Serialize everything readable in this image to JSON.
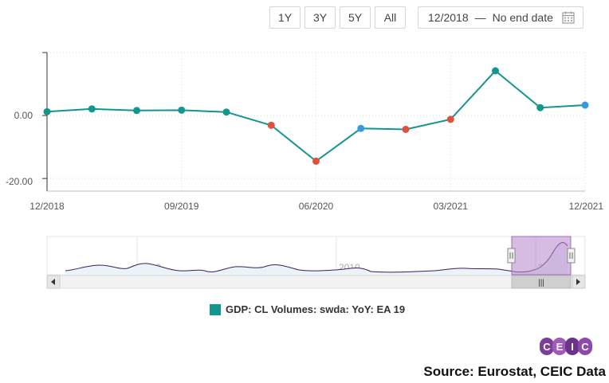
{
  "toolbar": {
    "buttons": [
      "1Y",
      "3Y",
      "5Y",
      "All"
    ],
    "date_start": "12/2018",
    "date_separator": "—",
    "date_end": "No end date",
    "calendar_icon": "calendar-icon"
  },
  "chart_data": {
    "type": "line",
    "title": "",
    "x": [
      "12/2018",
      "03/2019",
      "06/2019",
      "09/2019",
      "12/2019",
      "03/2020",
      "06/2020",
      "09/2020",
      "12/2020",
      "03/2021",
      "06/2021",
      "09/2021",
      "12/2021"
    ],
    "xticks": [
      "12/2018",
      "09/2019",
      "06/2020",
      "03/2021",
      "12/2021"
    ],
    "yticks": [
      "0.00",
      "-20.00"
    ],
    "ylim": [
      -24,
      20
    ],
    "series": [
      {
        "name": "GDP: CL Volumes: swda: YoY: EA 19",
        "color": "#13968e",
        "values": [
          1.2,
          2.1,
          1.6,
          1.7,
          1.1,
          -3.1,
          -14.5,
          -4.1,
          -4.4,
          -1.2,
          14.2,
          2.5,
          3.3
        ],
        "point_colors": [
          "#13968e",
          "#13968e",
          "#13968e",
          "#13968e",
          "#13968e",
          "#e0503a",
          "#e0503a",
          "#3a9ad9",
          "#e0503a",
          "#e0503a",
          "#13968e",
          "#13968e",
          "#3a9ad9"
        ]
      }
    ],
    "grid": true,
    "navigator": {
      "labels": [
        "2000",
        "2010",
        "2020"
      ],
      "scroll_grip": "|||"
    }
  },
  "legend": {
    "color": "#13968e",
    "label": "GDP: CL Volumes: swda: YoY: EA 19"
  },
  "logo": {
    "letters": [
      "C",
      "E",
      "I",
      "C"
    ],
    "colors": [
      "#7b3f98",
      "#a05ab8",
      "#6a3588",
      "#8e4aa8"
    ]
  },
  "source": "Source: Eurostat, CEIC Data"
}
